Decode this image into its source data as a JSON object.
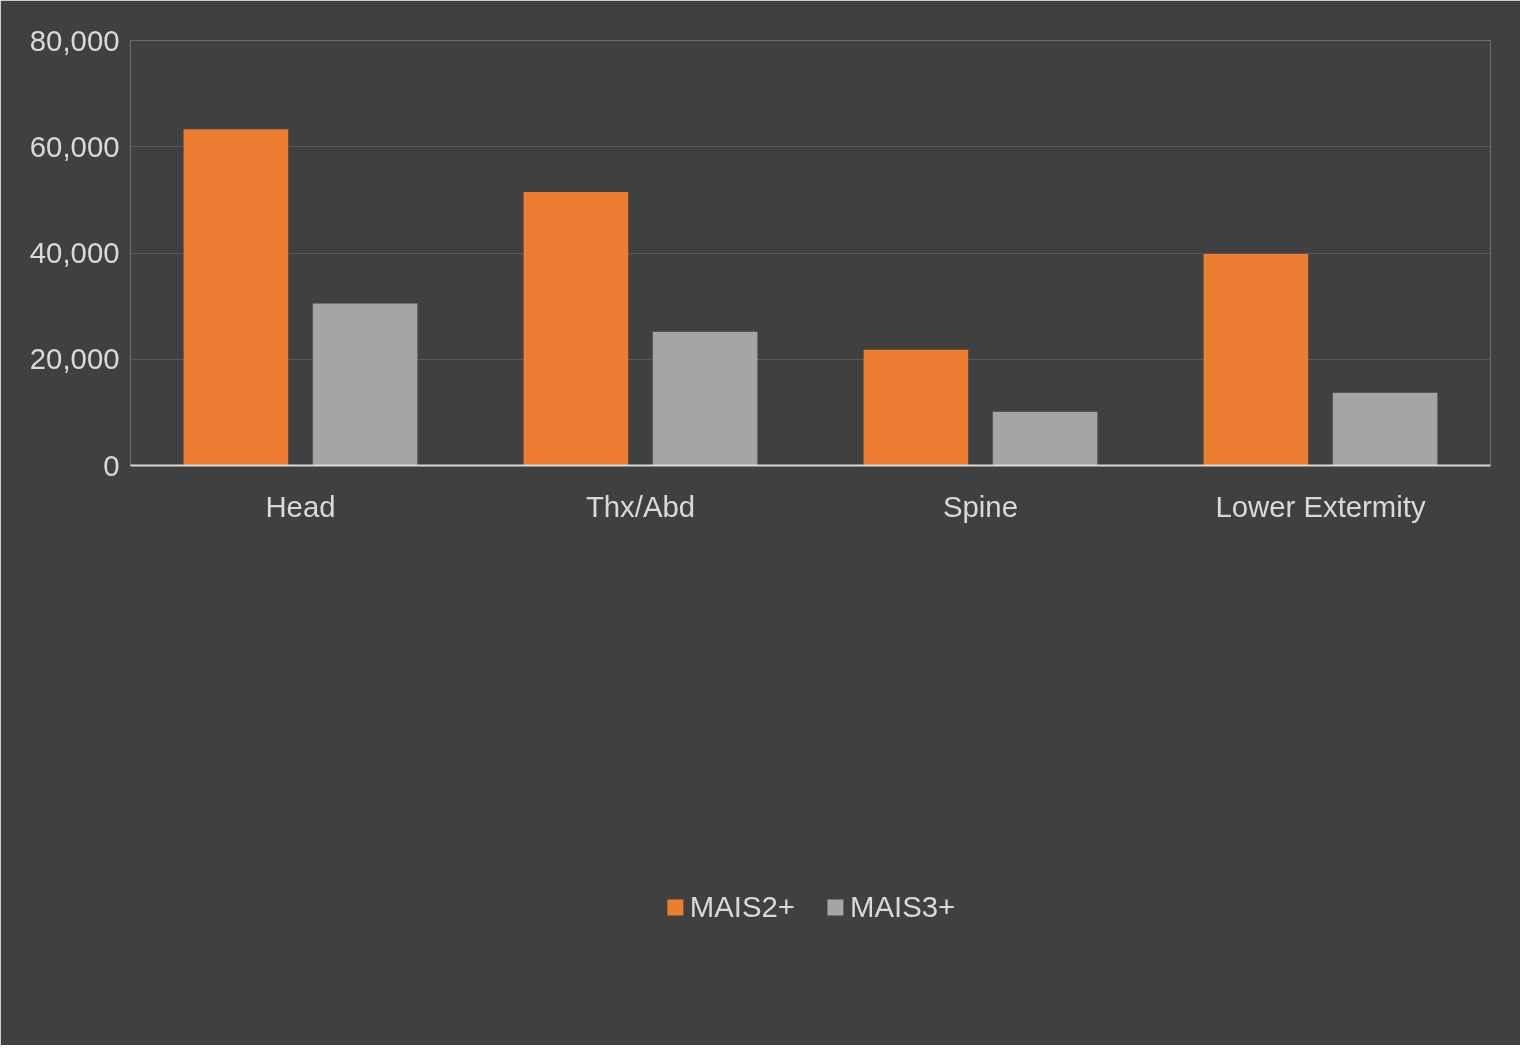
{
  "chart_data": {
    "type": "bar",
    "categories": [
      "Head",
      "Thx/Abd",
      "Spine",
      "Lower Extermity"
    ],
    "series": [
      {
        "name": "MAIS2+",
        "color": "#ed7d31",
        "values": [
          63300,
          51500,
          21800,
          39800
        ]
      },
      {
        "name": "MAIS3+",
        "color": "#a5a5a5",
        "values": [
          30500,
          25200,
          10100,
          13700
        ]
      }
    ],
    "ylim": [
      0,
      80000
    ],
    "yticks": [
      {
        "value": 0,
        "label": "0"
      },
      {
        "value": 20000,
        "label": "20,000"
      },
      {
        "value": 40000,
        "label": "40,000"
      },
      {
        "value": 60000,
        "label": "60,000"
      },
      {
        "value": 80000,
        "label": "80,000"
      }
    ],
    "grid": "y",
    "legend": "bottom"
  }
}
